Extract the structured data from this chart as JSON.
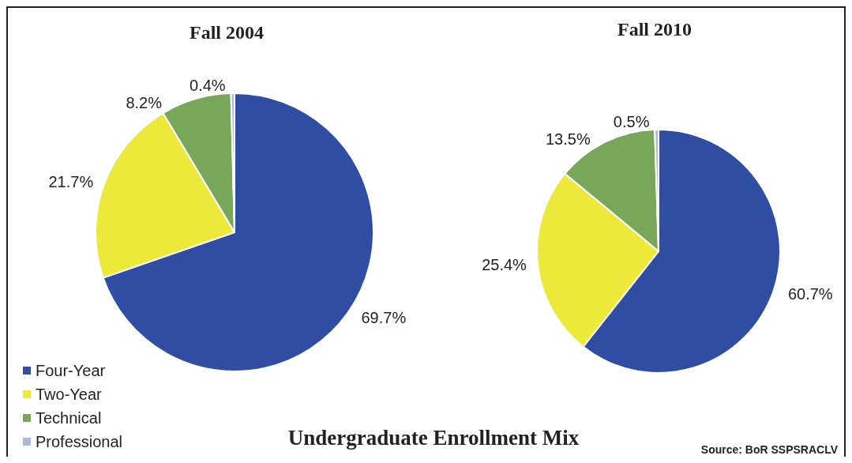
{
  "chart_data": {
    "type": "pie",
    "title": "Undergraduate Enrollment Mix",
    "categories": [
      "Four-Year",
      "Two-Year",
      "Technical",
      "Professional"
    ],
    "colors": [
      "#2f4da3",
      "#ece93a",
      "#78a75a",
      "#a7bbd8"
    ],
    "legend": "bottom left",
    "series": [
      {
        "name": "Fall 2004",
        "values": [
          69.7,
          21.7,
          8.2,
          0.4
        ],
        "value_labels": [
          "69.7%",
          "21.7%",
          "8.2%",
          "0.4%"
        ]
      },
      {
        "name": "Fall 2010",
        "values": [
          60.7,
          25.4,
          13.5,
          0.5
        ],
        "value_labels": [
          "60.7%",
          "25.4%",
          "13.5%",
          "0.5%"
        ]
      }
    ],
    "annotations": [
      "Source: BoR SSPSRACLV"
    ]
  }
}
